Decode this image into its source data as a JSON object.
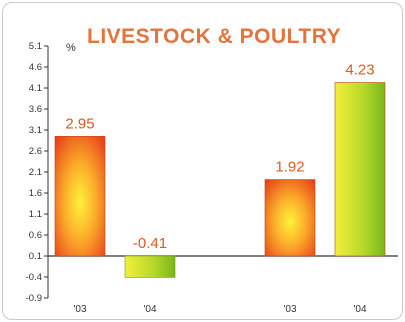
{
  "chart_data": {
    "type": "bar",
    "title": "LIVESTOCK & POULTRY",
    "ylabel": "%",
    "xlabel": "",
    "ylim": [
      -0.9,
      5.1
    ],
    "y_ticks": [
      "5.1",
      "4.6",
      "4.1",
      "3.6",
      "3.1",
      "2.6",
      "2.1",
      "1.6",
      "1.1",
      "0.6",
      "0.1",
      "-0.4",
      "-0.9"
    ],
    "categories": [
      "'03",
      "'04",
      "'03",
      "'04"
    ],
    "values": [
      2.95,
      -0.41,
      1.92,
      4.23
    ],
    "value_labels": [
      "2.95",
      "-0.41",
      "1.92",
      "4.23"
    ],
    "colors": {
      "year_03": "#e8421a",
      "year_04": "#8cc21f",
      "title": "#e4743c",
      "value_label": "#dd5a1f"
    }
  }
}
